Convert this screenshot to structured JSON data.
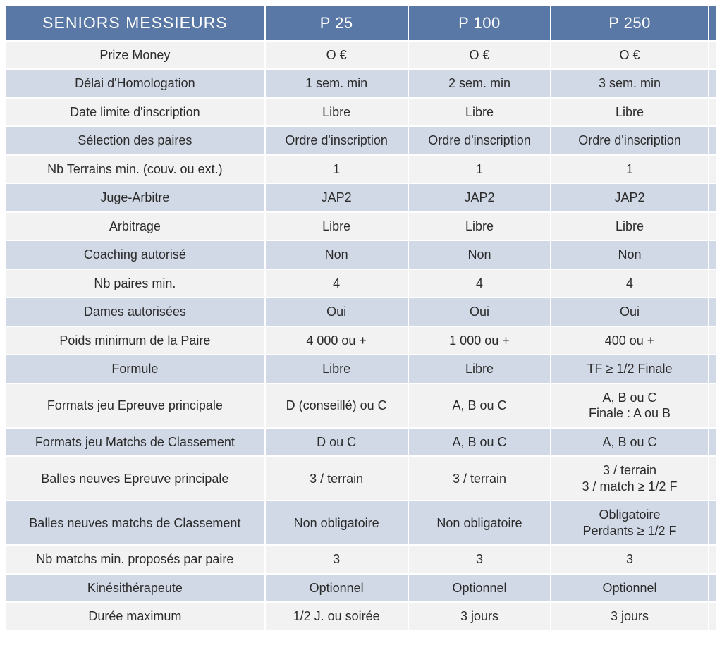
{
  "colors": {
    "header_bg": "#5a78a6",
    "header_text": "#ffffff",
    "row_even_bg": "#f2f2f3",
    "row_odd_bg": "#d2d9e6",
    "cell_text": "#2b2b2b",
    "border": "#ffffff",
    "link_text": "#2a4a7a"
  },
  "header": {
    "title": "SENIORS MESSIEURS",
    "cols": [
      "P 25",
      "P 100",
      "P 250"
    ]
  },
  "rows": [
    {
      "label": "Prize Money",
      "vals": [
        "O  €",
        "O €",
        "O €"
      ]
    },
    {
      "label": "Délai d'Homologation",
      "vals": [
        "1 sem. min",
        "2 sem. min",
        "3 sem. min"
      ]
    },
    {
      "label": "Date limite d'inscription",
      "vals": [
        "Libre",
        "Libre",
        "Libre"
      ]
    },
    {
      "label": "Sélection des paires",
      "vals": [
        "Ordre d'inscription",
        "Ordre d'inscription",
        "Ordre d'inscription"
      ]
    },
    {
      "label": "Nb Terrains min. (couv. ou ext.)",
      "vals": [
        "1",
        "1",
        "1"
      ]
    },
    {
      "label": "Juge-Arbitre",
      "vals": [
        "JAP2",
        "JAP2",
        "JAP2"
      ]
    },
    {
      "label": "Arbitrage",
      "vals": [
        "Libre",
        "Libre",
        "Libre"
      ]
    },
    {
      "label": "Coaching autorisé",
      "vals": [
        "Non",
        "Non",
        "Non"
      ]
    },
    {
      "label": "Nb paires min.",
      "vals": [
        "4",
        "4",
        "4"
      ]
    },
    {
      "label": "Dames autorisées",
      "vals": [
        "Oui",
        "Oui",
        "Oui"
      ],
      "link_col": 2
    },
    {
      "label": "Poids minimum de la Paire",
      "vals": [
        "4 000 ou +",
        "1 000 ou +",
        "400 ou +"
      ]
    },
    {
      "label": "Formule",
      "vals": [
        "Libre",
        "Libre",
        "TF ≥ 1/2 Finale"
      ]
    },
    {
      "label": "Formats jeu Epreuve principale",
      "vals": [
        "D (conseillé) ou C",
        "A, B ou C",
        "A, B ou C\nFinale : A ou B"
      ]
    },
    {
      "label": "Formats jeu Matchs de Classement",
      "vals": [
        "D ou C",
        "A, B ou C",
        "A, B ou C"
      ]
    },
    {
      "label": "Balles neuves Epreuve principale",
      "vals": [
        "3 / terrain",
        "3 / terrain",
        "3 / terrain\n3 / match ≥ 1/2  F"
      ]
    },
    {
      "label": "Balles neuves matchs de Classement",
      "vals": [
        "Non obligatoire",
        "Non obligatoire",
        "Obligatoire\nPerdants  ≥ 1/2 F"
      ]
    },
    {
      "label": "Nb matchs min. proposés par paire",
      "vals": [
        "3",
        "3",
        "3"
      ]
    },
    {
      "label": "Kinésithérapeute",
      "vals": [
        "Optionnel",
        "Optionnel",
        "Optionnel"
      ]
    },
    {
      "label": "Durée maximum",
      "vals": [
        "1/2 J. ou soirée",
        "3 jours",
        "3 jours"
      ]
    }
  ]
}
